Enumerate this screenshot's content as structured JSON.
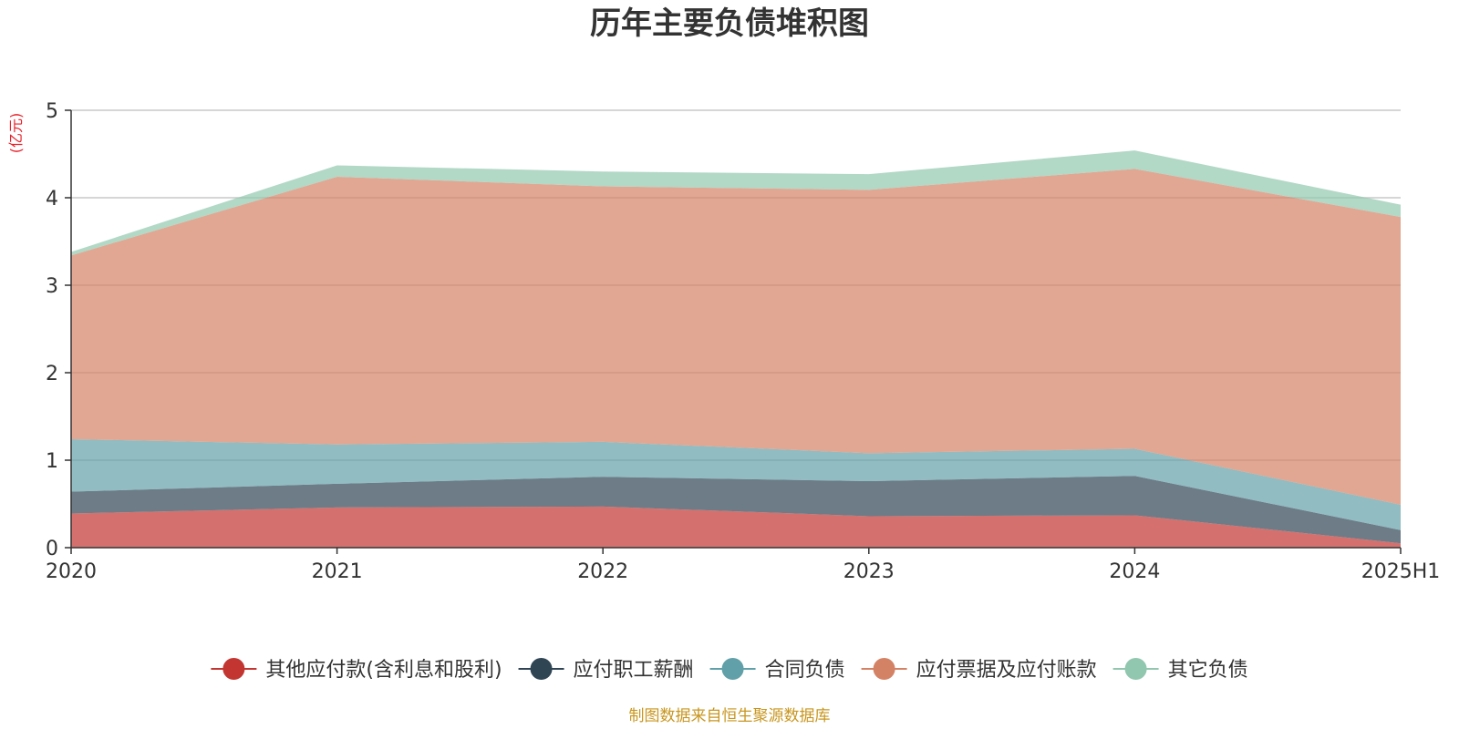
{
  "chart_data": {
    "type": "area",
    "stacked": true,
    "title": "历年主要负债堆积图",
    "unit_label": "(亿元)",
    "categories": [
      "2020",
      "2021",
      "2022",
      "2023",
      "2024",
      "2025H1"
    ],
    "ylim": [
      0,
      5
    ],
    "yticks": [
      0,
      1,
      2,
      3,
      4,
      5
    ],
    "grid": true,
    "legend_position": "bottom",
    "series": [
      {
        "name": "其他应付款(含利息和股利)",
        "color": "#c23531",
        "values": [
          0.39,
          0.46,
          0.47,
          0.36,
          0.37,
          0.05
        ]
      },
      {
        "name": "应付职工薪酬",
        "color": "#2f4554",
        "values": [
          0.25,
          0.27,
          0.34,
          0.4,
          0.45,
          0.15
        ]
      },
      {
        "name": "合同负债",
        "color": "#61a0a8",
        "values": [
          0.6,
          0.45,
          0.4,
          0.32,
          0.31,
          0.29
        ]
      },
      {
        "name": "应付票据及应付账款",
        "color": "#d48265",
        "values": [
          2.1,
          3.06,
          2.92,
          3.01,
          3.2,
          3.29
        ]
      },
      {
        "name": "其它负债",
        "color": "#91c7ae",
        "values": [
          0.04,
          0.13,
          0.17,
          0.18,
          0.21,
          0.14
        ]
      }
    ],
    "source_note": "制图数据来自恒生聚源数据库"
  }
}
